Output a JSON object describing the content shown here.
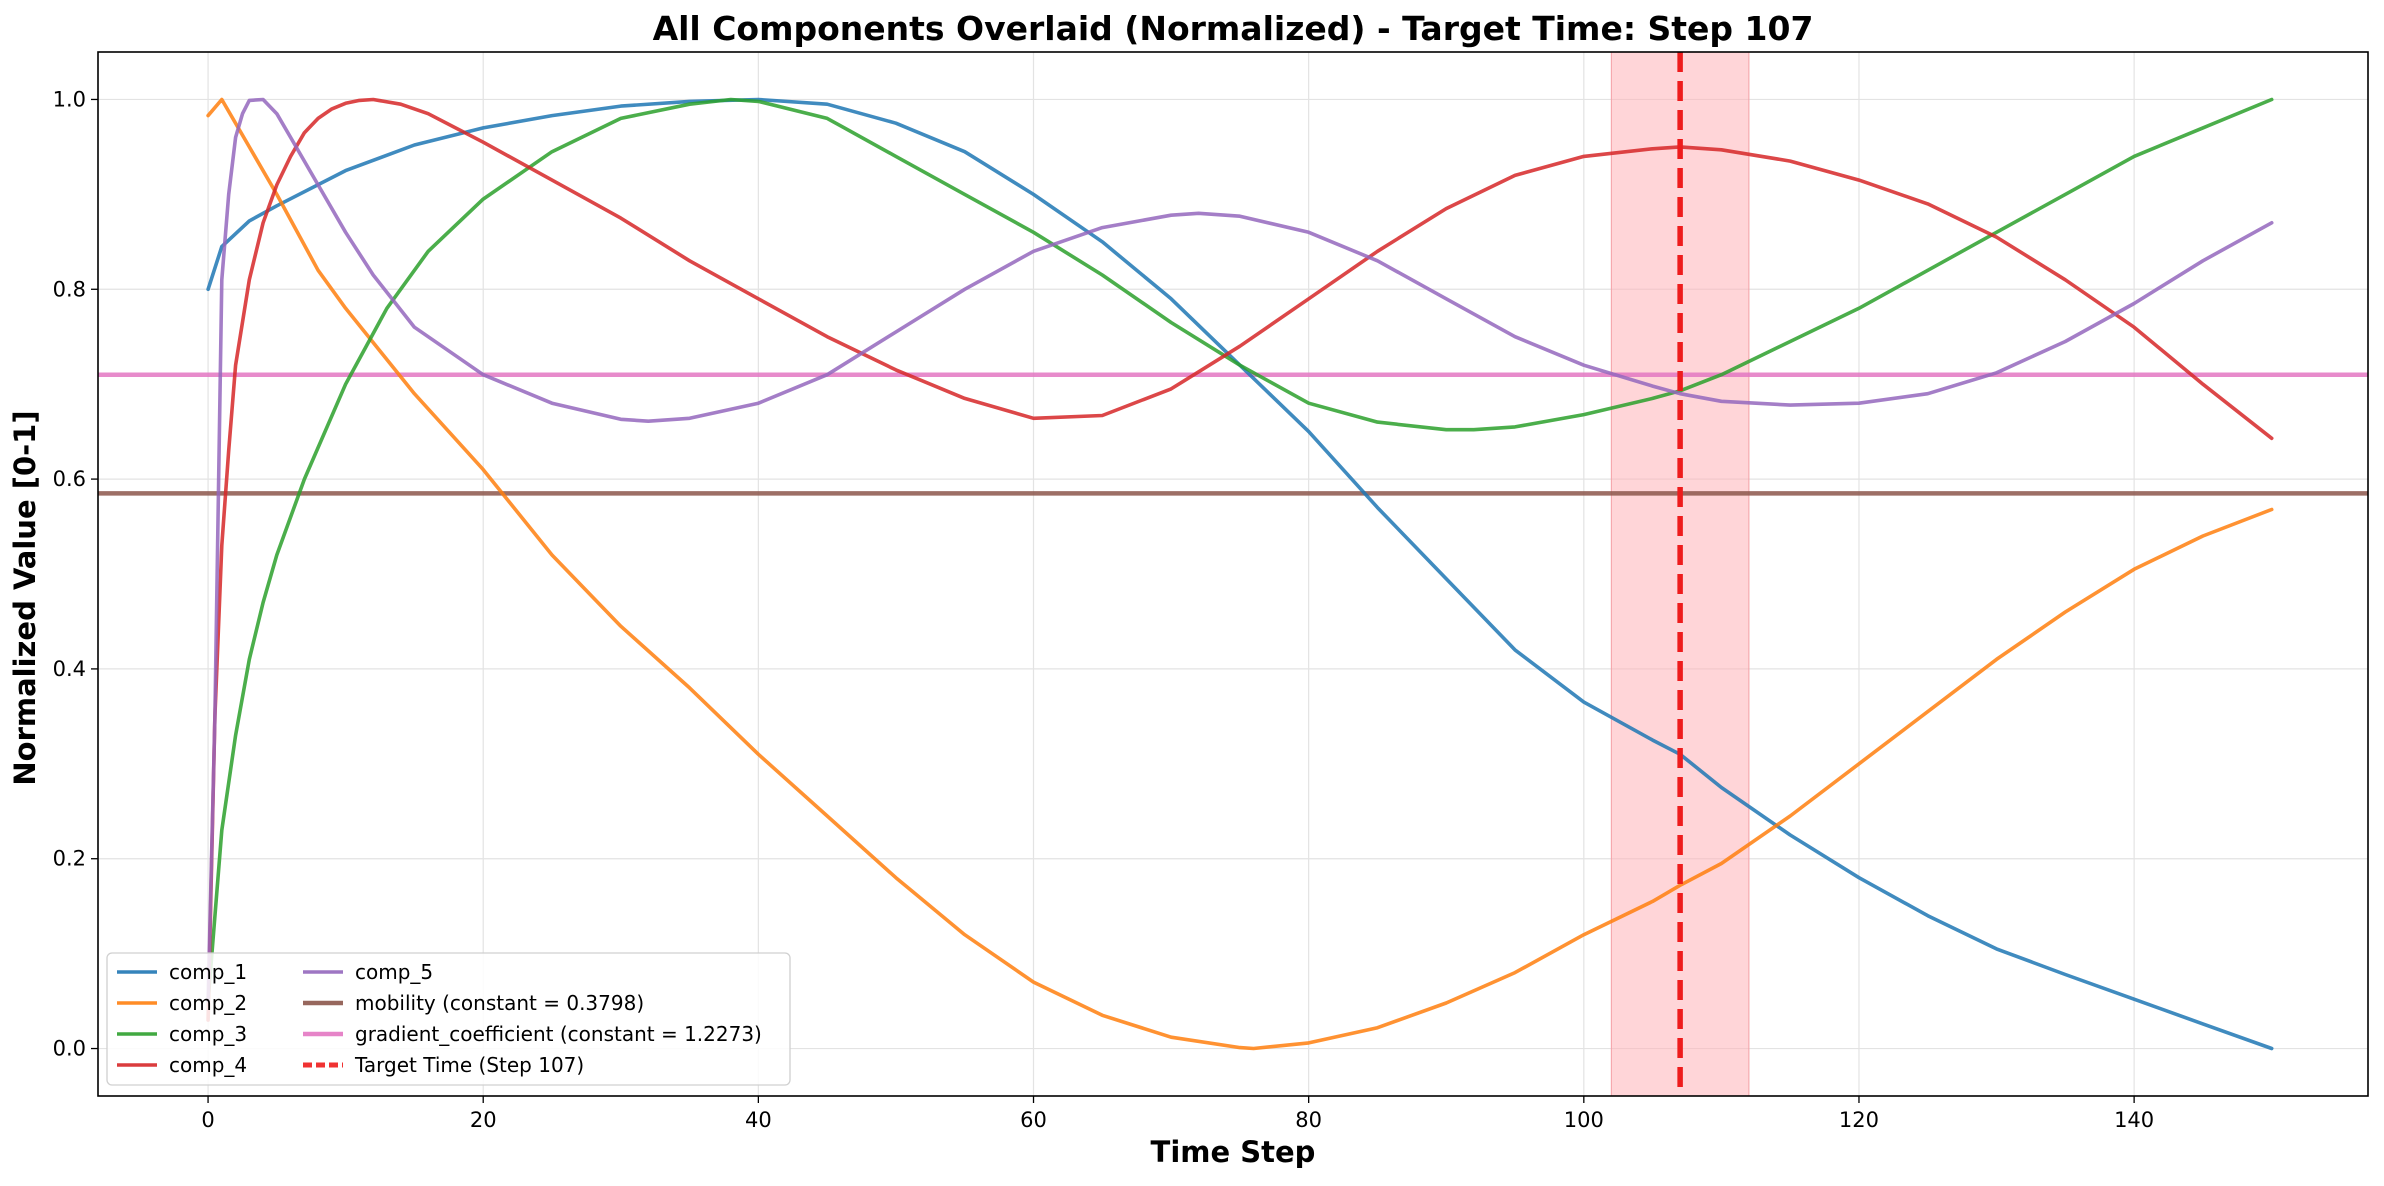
{
  "chart_data": {
    "type": "line",
    "title": "All Components Overlaid (Normalized) - Target Time: Step 107",
    "xlabel": "Time Step",
    "ylabel": "Normalized Value [0-1]",
    "xlim": [
      -8,
      157
    ],
    "ylim": [
      -0.05,
      1.05
    ],
    "xticks": [
      0,
      20,
      40,
      60,
      80,
      100,
      120,
      140
    ],
    "yticks": [
      0.0,
      0.2,
      0.4,
      0.6,
      0.8,
      1.0
    ],
    "xtick_labels": [
      "0",
      "20",
      "40",
      "60",
      "80",
      "100",
      "120",
      "140"
    ],
    "ytick_labels": [
      "0.0",
      "0.2",
      "0.4",
      "0.6",
      "0.8",
      "1.0"
    ],
    "grid": true,
    "legend_position": "lower-left",
    "series": [
      {
        "name": "comp_1",
        "color": "#1f77b4",
        "x": [
          0,
          1,
          3,
          5,
          10,
          15,
          20,
          25,
          30,
          35,
          40,
          45,
          50,
          55,
          60,
          65,
          70,
          75,
          80,
          85,
          90,
          95,
          100,
          105,
          107,
          110,
          115,
          120,
          125,
          130,
          135,
          140,
          145,
          150
        ],
        "y": [
          0.8,
          0.845,
          0.872,
          0.888,
          0.925,
          0.952,
          0.97,
          0.983,
          0.993,
          0.998,
          1.0,
          0.995,
          0.975,
          0.945,
          0.9,
          0.85,
          0.79,
          0.72,
          0.65,
          0.57,
          0.495,
          0.42,
          0.365,
          0.325,
          0.31,
          0.275,
          0.225,
          0.18,
          0.14,
          0.105,
          0.078,
          0.052,
          0.026,
          0.0
        ]
      },
      {
        "name": "comp_2",
        "color": "#ff7f0e",
        "x": [
          0,
          1,
          3,
          5,
          8,
          10,
          15,
          20,
          25,
          30,
          35,
          40,
          45,
          50,
          55,
          60,
          65,
          70,
          75,
          76,
          80,
          85,
          90,
          95,
          100,
          105,
          107,
          110,
          115,
          120,
          125,
          130,
          135,
          140,
          145,
          150
        ],
        "y": [
          0.983,
          1.0,
          0.95,
          0.9,
          0.82,
          0.78,
          0.69,
          0.61,
          0.52,
          0.445,
          0.38,
          0.31,
          0.245,
          0.18,
          0.12,
          0.07,
          0.035,
          0.012,
          0.001,
          0.0,
          0.006,
          0.022,
          0.048,
          0.08,
          0.12,
          0.155,
          0.172,
          0.195,
          0.245,
          0.3,
          0.355,
          0.41,
          0.46,
          0.505,
          0.54,
          0.568
        ]
      },
      {
        "name": "comp_3",
        "color": "#2ca02c",
        "x": [
          0,
          1,
          2,
          3,
          4,
          5,
          7,
          10,
          13,
          16,
          20,
          25,
          30,
          35,
          38,
          40,
          45,
          50,
          55,
          60,
          65,
          70,
          75,
          80,
          85,
          90,
          92,
          95,
          100,
          105,
          107,
          110,
          115,
          120,
          125,
          130,
          135,
          140,
          145,
          150
        ],
        "y": [
          0.05,
          0.23,
          0.33,
          0.41,
          0.47,
          0.52,
          0.6,
          0.7,
          0.78,
          0.84,
          0.895,
          0.945,
          0.98,
          0.995,
          1.0,
          0.998,
          0.98,
          0.94,
          0.9,
          0.86,
          0.815,
          0.765,
          0.72,
          0.68,
          0.66,
          0.652,
          0.652,
          0.655,
          0.668,
          0.685,
          0.693,
          0.71,
          0.745,
          0.78,
          0.82,
          0.86,
          0.9,
          0.94,
          0.97,
          1.0
        ]
      },
      {
        "name": "comp_4",
        "color": "#d62728",
        "x": [
          0,
          0.5,
          1,
          1.5,
          2,
          3,
          4,
          5,
          6,
          7,
          8,
          9,
          10,
          11,
          12,
          14,
          16,
          20,
          25,
          30,
          35,
          40,
          45,
          50,
          55,
          60,
          65,
          70,
          75,
          80,
          85,
          90,
          95,
          100,
          105,
          107,
          110,
          115,
          120,
          125,
          130,
          135,
          140,
          145,
          150
        ],
        "y": [
          0.03,
          0.35,
          0.53,
          0.63,
          0.72,
          0.81,
          0.87,
          0.91,
          0.94,
          0.965,
          0.98,
          0.99,
          0.996,
          0.999,
          1.0,
          0.995,
          0.985,
          0.955,
          0.915,
          0.875,
          0.83,
          0.79,
          0.75,
          0.715,
          0.685,
          0.664,
          0.667,
          0.695,
          0.74,
          0.79,
          0.84,
          0.885,
          0.92,
          0.94,
          0.948,
          0.95,
          0.947,
          0.935,
          0.915,
          0.89,
          0.855,
          0.81,
          0.76,
          0.7,
          0.643
        ]
      },
      {
        "name": "comp_5",
        "color": "#9467bd",
        "x": [
          0,
          0.5,
          1,
          1.5,
          2,
          2.5,
          3,
          4,
          5,
          6,
          8,
          10,
          12,
          15,
          20,
          25,
          30,
          32,
          35,
          40,
          45,
          50,
          55,
          60,
          65,
          70,
          72,
          75,
          80,
          85,
          90,
          95,
          100,
          105,
          107,
          110,
          115,
          120,
          125,
          130,
          135,
          140,
          145,
          150
        ],
        "y": [
          0.05,
          0.35,
          0.81,
          0.9,
          0.96,
          0.985,
          0.999,
          1.0,
          0.985,
          0.96,
          0.91,
          0.86,
          0.815,
          0.76,
          0.71,
          0.68,
          0.663,
          0.661,
          0.664,
          0.68,
          0.71,
          0.755,
          0.8,
          0.84,
          0.865,
          0.878,
          0.88,
          0.877,
          0.86,
          0.83,
          0.79,
          0.75,
          0.72,
          0.698,
          0.69,
          0.682,
          0.678,
          0.68,
          0.69,
          0.712,
          0.745,
          0.785,
          0.83,
          0.87
        ]
      }
    ],
    "constants": [
      {
        "name": "mobility (constant = 0.3798)",
        "y": 0.585,
        "color": "#8c564b"
      },
      {
        "name": "gradient_coefficient (constant = 1.2273)",
        "y": 0.71,
        "color": "#e377c2"
      }
    ],
    "target": {
      "name": "Target Time (Step 107)",
      "x": 107,
      "band": [
        102,
        112
      ],
      "color": "#ee1c1c",
      "band_color": "#ffb3b8"
    }
  }
}
